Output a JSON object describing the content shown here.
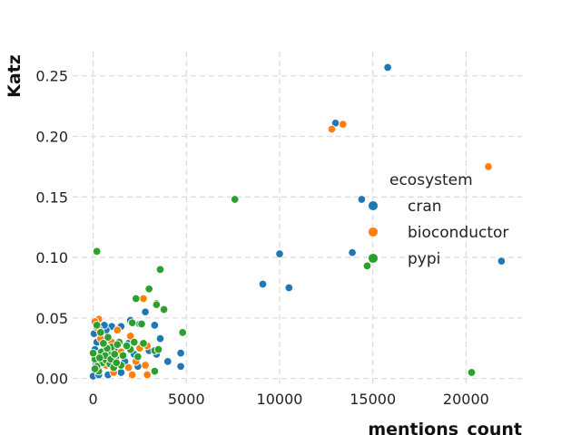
{
  "chart_data": {
    "type": "scatter",
    "xlabel": "mentions_count",
    "ylabel": "Katz",
    "xlim": [
      -1100,
      23000
    ],
    "ylim": [
      -0.007,
      0.27
    ],
    "xticks": [
      0,
      5000,
      10000,
      15000,
      20000
    ],
    "yticks": [
      0.0,
      0.05,
      0.1,
      0.15,
      0.2,
      0.25
    ],
    "xtick_labels": [
      "0",
      "5000",
      "10000",
      "15000",
      "20000"
    ],
    "ytick_labels": [
      "0.00",
      "0.05",
      "0.10",
      "0.15",
      "0.20",
      "0.25"
    ],
    "grid": true,
    "legend": {
      "title": "ecosystem",
      "placement": "center-right"
    },
    "series": [
      {
        "name": "cran",
        "color": "#1f77b4",
        "points": [
          [
            15800,
            0.257
          ],
          [
            13000,
            0.211
          ],
          [
            14400,
            0.148
          ],
          [
            13900,
            0.104
          ],
          [
            10000,
            0.103
          ],
          [
            9100,
            0.078
          ],
          [
            10500,
            0.075
          ],
          [
            21900,
            0.097
          ],
          [
            4700,
            0.021
          ],
          [
            4000,
            0.014
          ],
          [
            4700,
            0.01
          ],
          [
            3300,
            0.044
          ],
          [
            3600,
            0.033
          ],
          [
            2800,
            0.055
          ],
          [
            2500,
            0.045
          ],
          [
            2000,
            0.048
          ],
          [
            1900,
            0.029
          ],
          [
            1500,
            0.043
          ],
          [
            1000,
            0.043
          ],
          [
            700,
            0.04
          ],
          [
            600,
            0.044
          ],
          [
            300,
            0.041
          ],
          [
            200,
            0.03
          ],
          [
            100,
            0.024
          ],
          [
            50,
            0.037
          ],
          [
            0,
            0.002
          ],
          [
            300,
            0.003
          ],
          [
            800,
            0.003
          ],
          [
            1500,
            0.005
          ],
          [
            2200,
            0.02
          ],
          [
            2600,
            0.027
          ],
          [
            3000,
            0.023
          ],
          [
            1200,
            0.024
          ],
          [
            500,
            0.018
          ],
          [
            150,
            0.012
          ],
          [
            900,
            0.031
          ],
          [
            1700,
            0.014
          ],
          [
            2400,
            0.01
          ],
          [
            3400,
            0.02
          ],
          [
            600,
            0.027
          ]
        ]
      },
      {
        "name": "bioconductor",
        "color": "#ff7f0e",
        "points": [
          [
            13400,
            0.21
          ],
          [
            12800,
            0.206
          ],
          [
            21200,
            0.175
          ],
          [
            2700,
            0.066
          ],
          [
            2900,
            0.027
          ],
          [
            2800,
            0.011
          ],
          [
            2900,
            0.003
          ],
          [
            2100,
            0.003
          ],
          [
            1100,
            0.005
          ],
          [
            300,
            0.049
          ],
          [
            100,
            0.047
          ],
          [
            1000,
            0.03
          ],
          [
            1500,
            0.022
          ],
          [
            2000,
            0.035
          ],
          [
            2300,
            0.014
          ],
          [
            700,
            0.011
          ],
          [
            400,
            0.033
          ],
          [
            200,
            0.042
          ],
          [
            1300,
            0.04
          ],
          [
            600,
            0.016
          ],
          [
            1900,
            0.009
          ],
          [
            2500,
            0.025
          ]
        ]
      },
      {
        "name": "pypi",
        "color": "#2ca02c",
        "points": [
          [
            200,
            0.105
          ],
          [
            7600,
            0.148
          ],
          [
            14700,
            0.093
          ],
          [
            20300,
            0.005
          ],
          [
            3600,
            0.09
          ],
          [
            3000,
            0.074
          ],
          [
            3400,
            0.062
          ],
          [
            3400,
            0.061
          ],
          [
            3800,
            0.057
          ],
          [
            2300,
            0.066
          ],
          [
            2600,
            0.045
          ],
          [
            2100,
            0.046
          ],
          [
            4800,
            0.038
          ],
          [
            3300,
            0.023
          ],
          [
            3500,
            0.024
          ],
          [
            3300,
            0.006
          ],
          [
            2700,
            0.029
          ],
          [
            2200,
            0.03
          ],
          [
            2000,
            0.024
          ],
          [
            1400,
            0.03
          ],
          [
            1000,
            0.026
          ],
          [
            800,
            0.034
          ],
          [
            200,
            0.044
          ],
          [
            400,
            0.038
          ],
          [
            100,
            0.016
          ],
          [
            300,
            0.02
          ],
          [
            500,
            0.013
          ],
          [
            700,
            0.015
          ],
          [
            900,
            0.012
          ],
          [
            1200,
            0.017
          ],
          [
            1600,
            0.019
          ],
          [
            1800,
            0.027
          ],
          [
            600,
            0.024
          ],
          [
            0,
            0.021
          ],
          [
            1100,
            0.009
          ],
          [
            1500,
            0.011
          ],
          [
            2400,
            0.018
          ],
          [
            300,
            0.006
          ],
          [
            800,
            0.021
          ],
          [
            1300,
            0.028
          ],
          [
            200,
            0.01
          ],
          [
            450,
            0.022
          ],
          [
            650,
            0.019
          ],
          [
            950,
            0.016
          ],
          [
            1150,
            0.02
          ],
          [
            350,
            0.017
          ],
          [
            750,
            0.025
          ],
          [
            1250,
            0.013
          ],
          [
            550,
            0.029
          ],
          [
            100,
            0.008
          ]
        ]
      }
    ]
  }
}
